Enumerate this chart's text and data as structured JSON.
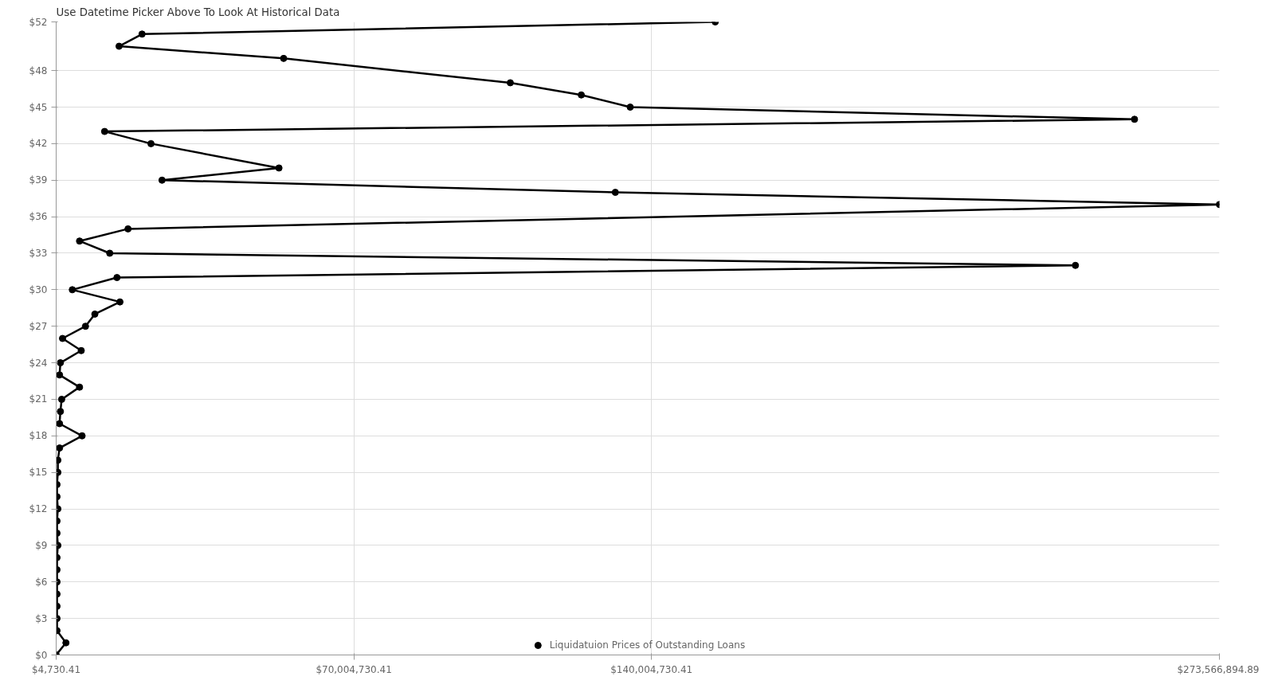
{
  "chart_data": {
    "type": "line",
    "title": "Use Datetime Picker Above To Look At Historical Data",
    "x": [
      155000000,
      20200000,
      14800000,
      53500000,
      106800000,
      123500000,
      135000000,
      253600000,
      11400000,
      22300000,
      52400000,
      24900000,
      131500000,
      273566894.89,
      16900000,
      5500000,
      12600000,
      239700000,
      14300000,
      3800000,
      15000000,
      9100000,
      6900000,
      1500000,
      5900000,
      1000000,
      800000,
      5500000,
      1300000,
      1000000,
      800000,
      6100000,
      800000,
      400000,
      400000,
      200000,
      200000,
      400000,
      200000,
      200000,
      400000,
      200000,
      200000,
      200000,
      200000,
      200000,
      200000,
      200000,
      2300000,
      4730.41
    ],
    "series": [
      {
        "name": "Liquidatuion Prices of Outstanding Loans",
        "color": "#000000",
        "values": [
          52,
          51,
          50,
          49,
          47,
          46,
          45,
          44,
          43,
          42,
          40,
          39,
          38,
          37,
          35,
          34,
          33,
          32,
          31,
          30,
          29,
          28,
          27,
          26,
          25,
          24,
          23,
          22,
          21,
          20,
          19,
          18,
          17,
          16,
          15,
          14,
          13,
          12,
          11,
          10,
          9,
          8,
          7,
          6,
          5,
          4,
          3,
          2,
          1,
          0
        ]
      }
    ],
    "xlim": [
      4730.41,
      273566894.89
    ],
    "xticks": [
      {
        "value": 4730.41,
        "label": "$4,730.41"
      },
      {
        "value": 70004730.41,
        "label": "$70,004,730.41"
      },
      {
        "value": 140004730.41,
        "label": "$140,004,730.41"
      },
      {
        "value": 273566894.89,
        "label": "$273,566,894.89"
      }
    ],
    "ylim": [
      0,
      52
    ],
    "yticks": [
      {
        "value": 0,
        "label": "$0"
      },
      {
        "value": 3,
        "label": "$3"
      },
      {
        "value": 6,
        "label": "$6"
      },
      {
        "value": 9,
        "label": "$9"
      },
      {
        "value": 12,
        "label": "$12"
      },
      {
        "value": 15,
        "label": "$15"
      },
      {
        "value": 18,
        "label": "$18"
      },
      {
        "value": 21,
        "label": "$21"
      },
      {
        "value": 24,
        "label": "$24"
      },
      {
        "value": 27,
        "label": "$27"
      },
      {
        "value": 30,
        "label": "$30"
      },
      {
        "value": 33,
        "label": "$33"
      },
      {
        "value": 36,
        "label": "$36"
      },
      {
        "value": 39,
        "label": "$39"
      },
      {
        "value": 42,
        "label": "$42"
      },
      {
        "value": 45,
        "label": "$45"
      },
      {
        "value": 48,
        "label": "$48"
      },
      {
        "value": 52,
        "label": "$52"
      }
    ],
    "grid": true,
    "legend": "bottom",
    "marker": "circle",
    "line_style": "solid"
  }
}
